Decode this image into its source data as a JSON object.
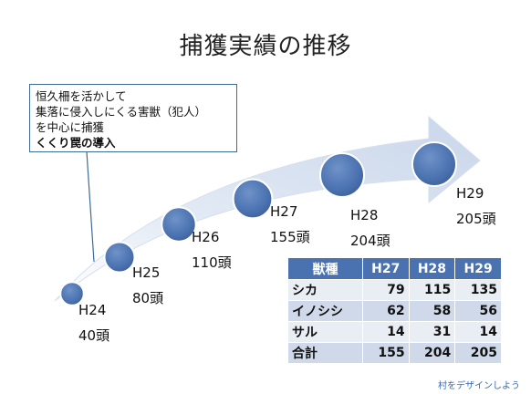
{
  "title": "捕獲実績の推移",
  "callout": {
    "lines": [
      "恒久柵を活かして",
      "集落に侵入しにくる害獣（犯人）",
      "を中心に捕獲"
    ],
    "emphasis": "くくり罠の導入"
  },
  "colors": {
    "accent": "#4a72b0",
    "circle": "#4a72b0",
    "arrow": "#dbe4f1"
  },
  "years": [
    {
      "year": "H24",
      "count": "40頭",
      "value": 40
    },
    {
      "year": "H25",
      "count": "80頭",
      "value": 80
    },
    {
      "year": "H26",
      "count": "110頭",
      "value": 110
    },
    {
      "year": "H27",
      "count": "155頭",
      "value": 155
    },
    {
      "year": "H28",
      "count": "204頭",
      "value": 204
    },
    {
      "year": "H29",
      "count": "205頭",
      "value": 205
    }
  ],
  "table": {
    "headers": [
      "獣種",
      "H27",
      "H28",
      "H29"
    ],
    "rows": [
      {
        "label": "シカ",
        "values": [
          "79",
          "115",
          "135"
        ]
      },
      {
        "label": "イノシシ",
        "values": [
          "62",
          "58",
          "56"
        ]
      },
      {
        "label": "サル",
        "values": [
          "14",
          "31",
          "14"
        ]
      },
      {
        "label": "合計",
        "values": [
          "155",
          "204",
          "205"
        ]
      }
    ]
  },
  "footer": "村をデザインしよう"
}
